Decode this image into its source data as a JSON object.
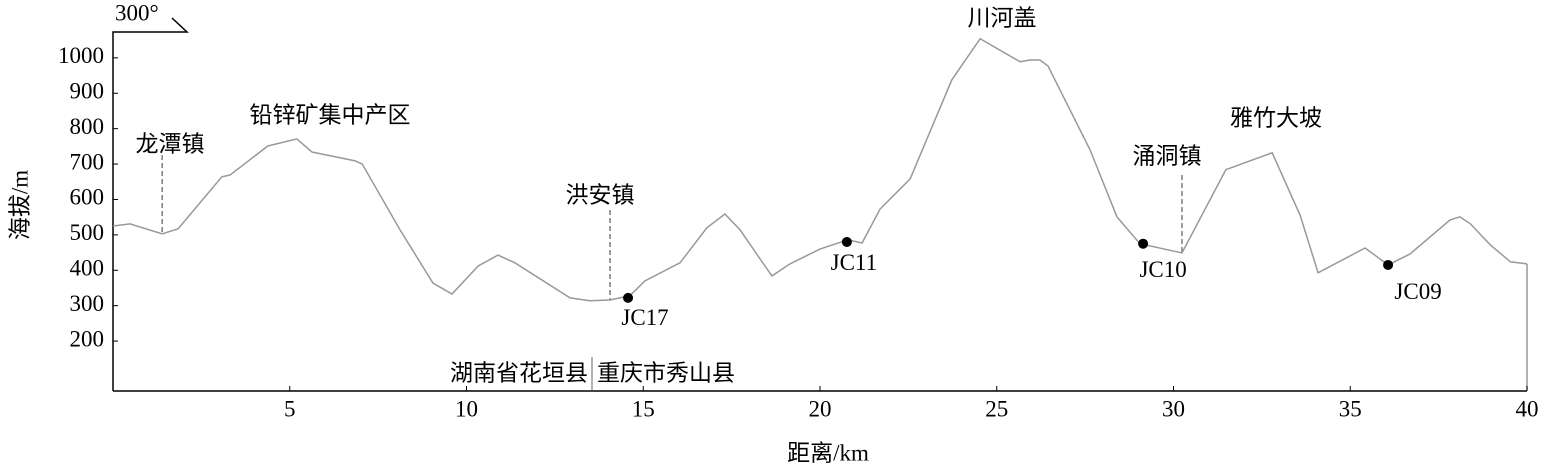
{
  "chart_data": {
    "type": "line",
    "x_label": "距离/km",
    "y_label": "海拔/m",
    "xlim": [
      0,
      40
    ],
    "ylim": [
      59,
      1073
    ],
    "xticks": [
      5,
      10,
      15,
      20,
      25,
      30,
      35,
      40
    ],
    "yticks": [
      200,
      300,
      400,
      500,
      600,
      700,
      800,
      900,
      1000
    ],
    "x": [
      0,
      0.48,
      1.39,
      1.84,
      3.08,
      3.31,
      4.38,
      5.2,
      5.63,
      6.85,
      7.05,
      8.12,
      9.05,
      9.59,
      10.33,
      10.89,
      11.37,
      12.93,
      13.49,
      14.06,
      14.62,
      15.05,
      16.04,
      16.8,
      17.31,
      17.74,
      18.36,
      18.64,
      19.15,
      20.0,
      20.79,
      21.19,
      21.7,
      22.55,
      23.73,
      24.53,
      25.66,
      25.94,
      26.22,
      26.45,
      27.64,
      28.4,
      29.05,
      30.24,
      31.48,
      32.79,
      33.58,
      34.09,
      35.42,
      36.07,
      36.69,
      37.82,
      38.1,
      38.4,
      38.96,
      39.53,
      40.0
    ],
    "series": [
      {
        "color": "#999999",
        "values": [
          525,
          531,
          503,
          517,
          664,
          669,
          751,
          771,
          734,
          709,
          700,
          514,
          364,
          333,
          412,
          443,
          421,
          322,
          314,
          316,
          328,
          370,
          421,
          520,
          559,
          514,
          424,
          384,
          418,
          460,
          486,
          477,
          573,
          658,
          938,
          1054,
          989,
          994,
          994,
          977,
          740,
          551,
          475,
          449,
          684,
          732,
          556,
          393,
          463,
          415,
          446,
          542,
          551,
          531,
          472,
          424,
          418
        ]
      }
    ],
    "points": {
      "labels": [
        "JC17",
        "JC11",
        "JC10",
        "JC09"
      ],
      "x": [
        14.57,
        20.76,
        29.14,
        36.07
      ],
      "values": [
        322,
        480,
        475,
        415
      ],
      "color": "#000000"
    },
    "annotations": {
      "orientation": "300°",
      "places": [
        "龙潭镇",
        "铅锌矿集中产区",
        "洪安镇",
        "川河盖",
        "涌洞镇",
        "雅竹大坡"
      ],
      "regions": [
        "湖南省花垣县",
        "重庆市秀山县"
      ]
    }
  }
}
